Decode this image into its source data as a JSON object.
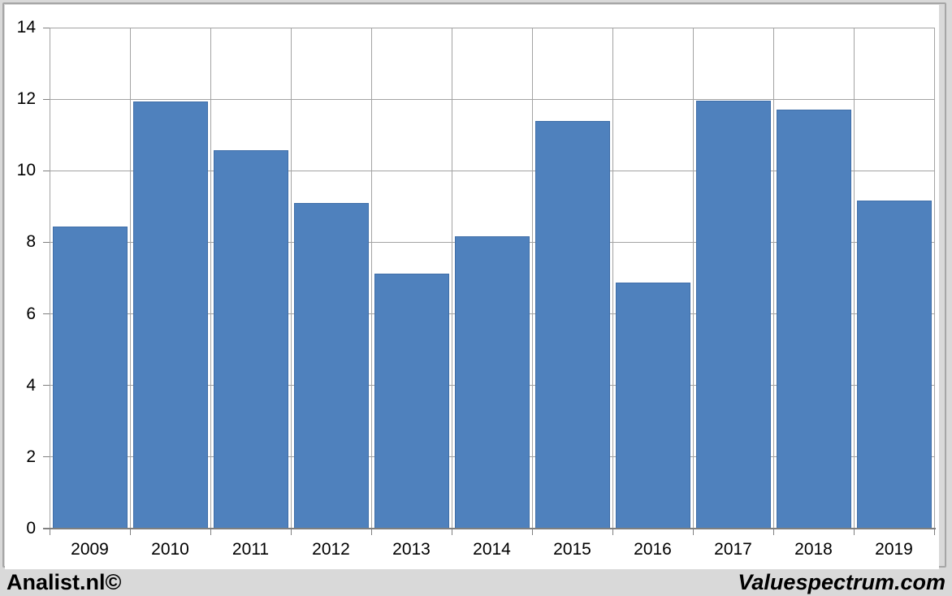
{
  "chart_data": {
    "type": "bar",
    "categories": [
      "2009",
      "2010",
      "2011",
      "2012",
      "2013",
      "2014",
      "2015",
      "2016",
      "2017",
      "2018",
      "2019"
    ],
    "values": [
      8.45,
      11.93,
      10.57,
      9.1,
      7.12,
      8.17,
      11.4,
      6.88,
      11.95,
      11.7,
      9.17
    ],
    "title": "",
    "xlabel": "",
    "ylabel": "",
    "ylim": [
      0,
      14
    ],
    "yticks": [
      0,
      2,
      4,
      6,
      8,
      10,
      12,
      14
    ],
    "grid": true,
    "legend": false,
    "bar_color": "#4f81bd",
    "bar_border_color": "#3f6ea8",
    "gridline_color": "#a3a3a3",
    "axis_color": "#7f7f7f",
    "label_color": "#000000"
  },
  "footer": {
    "left_text": "Analist.nl©",
    "right_text": "Valuespectrum.com"
  },
  "colors": {
    "page_bg": "#d9d9d9",
    "chart_bg": "#ffffff",
    "frame_border": "#a6a6a6"
  }
}
